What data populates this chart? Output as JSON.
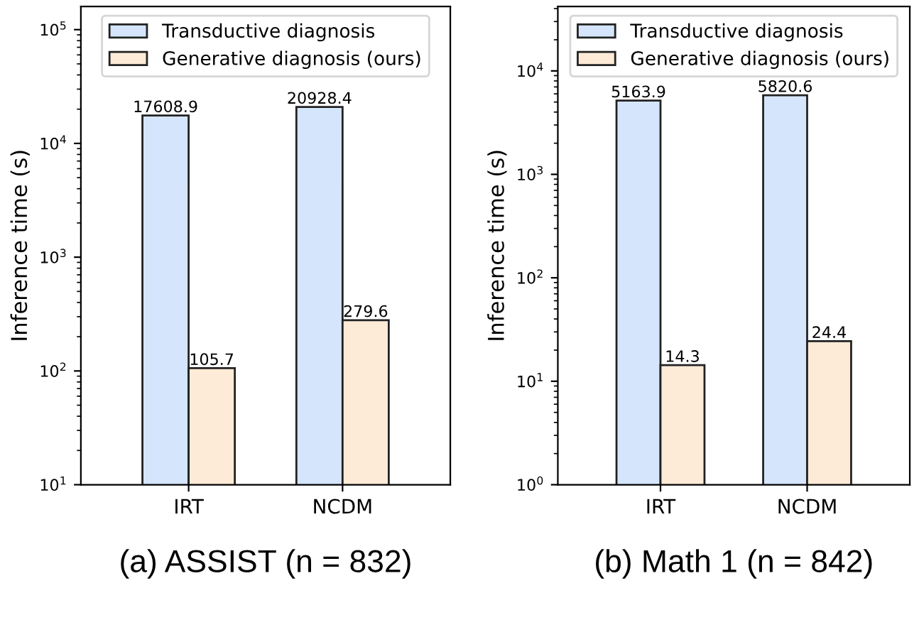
{
  "chart_data": [
    {
      "type": "bar",
      "xlabel": "(a) ASSIST (n = 832)",
      "ylabel": "Inference time (s)",
      "categories": [
        "IRT",
        "NCDM"
      ],
      "series": [
        {
          "name": "Transductive diagnosis",
          "color": "#d5e5fb",
          "values": [
            17608.9,
            20928.4
          ]
        },
        {
          "name": "Generative diagnosis (ours)",
          "color": "#fdebd7",
          "values": [
            105.7,
            279.6
          ]
        }
      ],
      "log": "y",
      "ylim": [
        10,
        160000
      ],
      "yticks": [
        {
          "value": 10,
          "label": "10$^{1}$"
        },
        {
          "value": 100,
          "label": "10$^{2}$"
        },
        {
          "value": 1000,
          "label": "10$^{3}$"
        },
        {
          "value": 10000,
          "label": "10$^{4}$"
        },
        {
          "value": 100000,
          "label": "10$^{5}$"
        }
      ],
      "data_labels": true,
      "legend": "top",
      "grid": false
    },
    {
      "type": "bar",
      "xlabel": "(b) Math 1 (n = 842)",
      "ylabel": "Inference time (s)",
      "categories": [
        "IRT",
        "NCDM"
      ],
      "series": [
        {
          "name": "Transductive diagnosis",
          "color": "#d5e5fb",
          "values": [
            5163.9,
            5820.6
          ]
        },
        {
          "name": "Generative diagnosis (ours)",
          "color": "#fdebd7",
          "values": [
            14.3,
            24.4
          ]
        }
      ],
      "log": "y",
      "ylim": [
        1,
        42000
      ],
      "yticks": [
        {
          "value": 1,
          "label": "10$^{0}$"
        },
        {
          "value": 10,
          "label": "10$^{1}$"
        },
        {
          "value": 100,
          "label": "10$^{2}$"
        },
        {
          "value": 1000,
          "label": "10$^{3}$"
        },
        {
          "value": 10000,
          "label": "10$^{4}$"
        }
      ],
      "data_labels": true,
      "legend": "top",
      "grid": false
    }
  ]
}
